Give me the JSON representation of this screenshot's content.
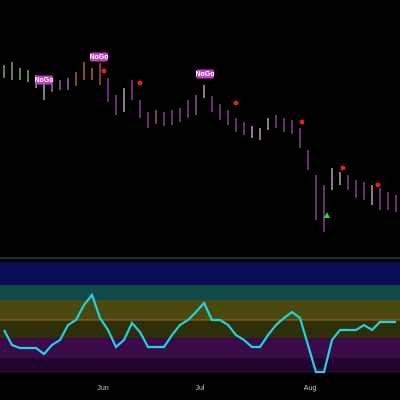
{
  "chart_data": {
    "type": "ohlc",
    "ylim": [
      0,
      255
    ],
    "high": [
      190,
      193,
      187,
      185,
      180,
      177,
      173,
      175,
      177,
      183,
      193,
      187,
      192,
      177,
      160,
      167,
      175,
      155,
      143,
      145,
      143,
      145,
      147,
      155,
      160,
      170,
      159,
      151,
      145,
      137,
      133,
      129,
      127,
      137,
      140,
      137,
      135,
      127,
      105,
      80,
      70,
      87,
      83,
      80,
      75,
      73,
      70,
      67,
      63,
      60
    ],
    "low": [
      177,
      175,
      175,
      173,
      167,
      155,
      163,
      165,
      165,
      169,
      175,
      175,
      170,
      153,
      140,
      143,
      155,
      137,
      127,
      131,
      129,
      130,
      133,
      137,
      140,
      157,
      143,
      135,
      130,
      123,
      120,
      117,
      115,
      125,
      127,
      123,
      121,
      107,
      85,
      35,
      23,
      65,
      70,
      65,
      57,
      55,
      50,
      45,
      45,
      43
    ],
    "colors": [
      "#7fd8a0",
      "#7fd8a0",
      "#8fe0b0",
      "#8fe0b0",
      "#b0c8ff",
      "#c0d0ff",
      "#d080d0",
      "#c070c0",
      "#d080d0",
      "#e07060",
      "#e08040",
      "#e08040",
      "#e06040",
      "#b050c0",
      "#b050c0",
      "#f0c0f0",
      "#b050c0",
      "#b050c0",
      "#b050c0",
      "#c060c0",
      "#b050c0",
      "#b050c0",
      "#b050c0",
      "#b050c0",
      "#c060c0",
      "#f0c0f0",
      "#b050c0",
      "#b050c0",
      "#b050c0",
      "#b050c0",
      "#b050c0",
      "#f0c0f0",
      "#f0c0f0",
      "#f0c0f0",
      "#b050c0",
      "#b050c0",
      "#b050c0",
      "#b050c0",
      "#b050c0",
      "#b050c0",
      "#b050c0",
      "#f0c0f0",
      "#f0c0f0",
      "#b050c0",
      "#b050c0",
      "#b050c0",
      "#f0c0f0",
      "#b050c0",
      "#b050c0",
      "#b050c0"
    ],
    "annotations": [
      "NoGo",
      "NoGo",
      "NoGo"
    ],
    "month_labels": [
      "Jun",
      "Jul",
      "Aug"
    ],
    "oscillator": {
      "color": "#22d3e0",
      "ylim": [
        0,
        117
      ],
      "values": [
        45,
        30,
        27,
        27,
        27,
        21,
        30,
        35,
        50,
        55,
        70,
        80,
        57,
        45,
        28,
        35,
        52,
        43,
        28,
        28,
        28,
        40,
        50,
        55,
        63,
        72,
        55,
        55,
        50,
        40,
        35,
        28,
        28,
        40,
        50,
        57,
        63,
        57,
        30,
        3,
        3,
        35,
        45,
        45,
        45,
        50,
        45,
        53,
        53,
        53
      ]
    }
  }
}
